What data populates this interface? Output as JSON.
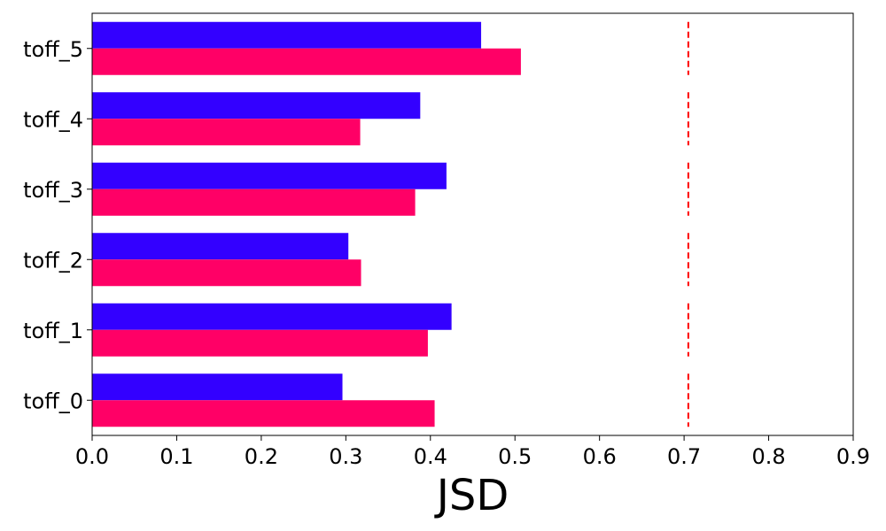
{
  "chart_data": {
    "type": "bar",
    "orientation": "horizontal",
    "categories": [
      "toff_0",
      "toff_1",
      "toff_2",
      "toff_3",
      "toff_4",
      "toff_5"
    ],
    "series": [
      {
        "color": "#3300ff",
        "values": [
          0.296,
          0.425,
          0.303,
          0.419,
          0.388,
          0.46
        ]
      },
      {
        "color": "#ff0066",
        "values": [
          0.405,
          0.397,
          0.318,
          0.382,
          0.317,
          0.507
        ]
      }
    ],
    "reference_line": {
      "x": 0.705,
      "color": "#ff0000",
      "style": "dashed"
    },
    "title": "",
    "xlabel": "JSD",
    "ylabel": "",
    "xlim": [
      0,
      0.9
    ],
    "xticks": [
      "0.0",
      "0.1",
      "0.2",
      "0.3",
      "0.4",
      "0.5",
      "0.6",
      "0.7",
      "0.8",
      "0.9"
    ],
    "grid": false,
    "legend": "none"
  }
}
